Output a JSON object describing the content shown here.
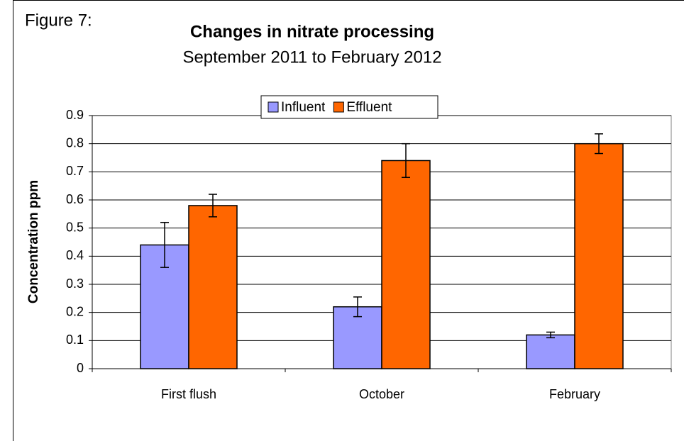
{
  "chart_data": {
    "type": "bar",
    "label": "Figure 7:",
    "title": "Changes in nitrate processing",
    "subtitle": "September 2011 to February 2012",
    "y_label": "Concentration ppm",
    "categories": [
      "First flush",
      "October",
      "February"
    ],
    "series": [
      {
        "name": "Influent",
        "color": "#9999ff",
        "values": [
          0.44,
          0.22,
          0.12
        ],
        "errors": [
          0.08,
          0.035,
          0.01
        ]
      },
      {
        "name": "Effluent",
        "color": "#ff6600",
        "values": [
          0.58,
          0.74,
          0.8
        ],
        "errors": [
          0.04,
          0.06,
          0.035
        ]
      }
    ],
    "ylim": [
      0,
      0.9
    ],
    "yticks": [
      0,
      0.1,
      0.2,
      0.3,
      0.4,
      0.5,
      0.6,
      0.7,
      0.8,
      0.9
    ],
    "grid": true,
    "legend": "top"
  }
}
